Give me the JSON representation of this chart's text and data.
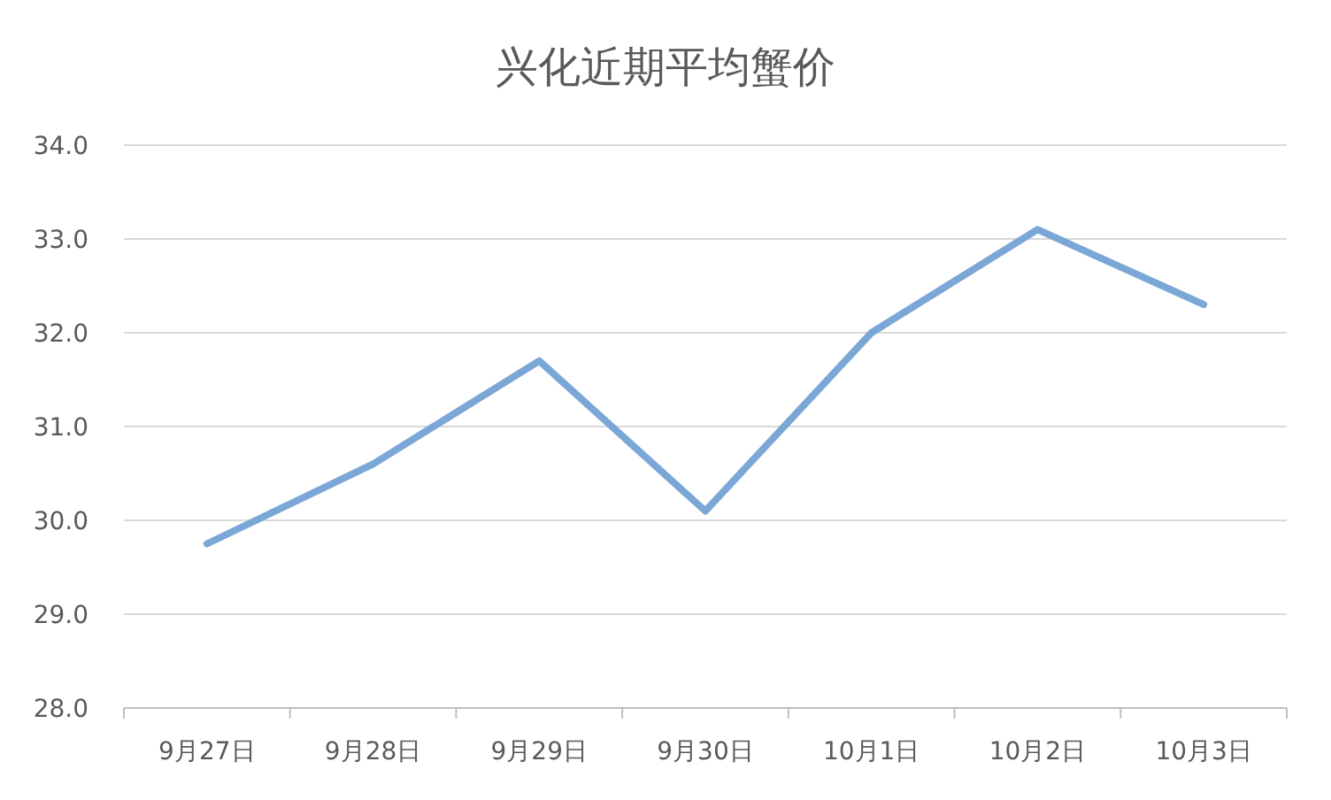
{
  "chart_data": {
    "type": "line",
    "title": "兴化近期平均蟹价",
    "categories": [
      "9月27日",
      "9月28日",
      "9月29日",
      "9月30日",
      "10月1日",
      "10月2日",
      "10月3日"
    ],
    "values": [
      29.75,
      30.6,
      31.7,
      30.1,
      32.0,
      33.1,
      32.3
    ],
    "color": "#7ba7d7",
    "ylim": [
      28,
      34
    ],
    "yticks": [
      {
        "value": 28,
        "label": "28.0"
      },
      {
        "value": 29,
        "label": "29.0"
      },
      {
        "value": 30,
        "label": "30.0"
      },
      {
        "value": 31,
        "label": "31.0"
      },
      {
        "value": 32,
        "label": "32.0"
      },
      {
        "value": 33,
        "label": "33.0"
      },
      {
        "value": 34,
        "label": "34.0"
      }
    ],
    "grid": "y"
  }
}
